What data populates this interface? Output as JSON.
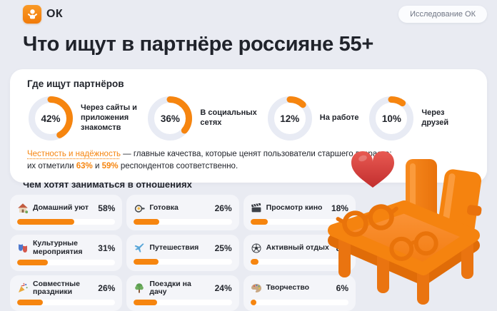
{
  "header": {
    "logo_text": "ОК",
    "badge": "Исследование ОК"
  },
  "title": "Что ищут в партнёре россияне 55+",
  "where": {
    "heading": "Где ищут партнёров",
    "donuts": [
      {
        "pct": 42,
        "label": "Через сайты и приложения знакомств"
      },
      {
        "pct": 36,
        "label": "В социальных сетях"
      },
      {
        "pct": 12,
        "label": "На работе"
      },
      {
        "pct": 10,
        "label": "Через друзей"
      }
    ],
    "note": {
      "highlight": "Честность и надёжность",
      "after_highlight": " — главные качества, которые ценят пользователи старшего возраста:",
      "line2_prefix": "их отметили ",
      "pct1": "63%",
      "between": " и ",
      "pct2": "59%",
      "suffix": " респондентов соответственно."
    }
  },
  "activities": {
    "heading": "Чем хотят заниматься в отношениях",
    "items": [
      {
        "icon": "house-icon",
        "label": "Домашний уют",
        "pct": 58
      },
      {
        "icon": "pan-icon",
        "label": "Готовка",
        "pct": 26
      },
      {
        "icon": "clapper-icon",
        "label": "Просмотр кино",
        "pct": 18
      },
      {
        "icon": "masks-icon",
        "label": "Культурные мероприятия",
        "pct": 31
      },
      {
        "icon": "plane-icon",
        "label": "Путешествия",
        "pct": 25
      },
      {
        "icon": "ball-icon",
        "label": "Активный отдых",
        "pct": 8
      },
      {
        "icon": "party-icon",
        "label": "Совместные праздники",
        "pct": 26
      },
      {
        "icon": "tree-icon",
        "label": "Поездки на дачу",
        "pct": 24
      },
      {
        "icon": "palette-icon",
        "label": "Творчество",
        "pct": 6
      }
    ]
  },
  "colors": {
    "accent": "#F6850F",
    "accent_dark": "#E9720C",
    "donut_track": "#E8EBF4",
    "page_bg": "#E9EBF2",
    "card_bg": "#FFFFFF",
    "item_bg": "#F4F5F9",
    "text": "#22252C",
    "muted": "#6F7584",
    "heart_red": "#D43B3B"
  },
  "chart_data": [
    {
      "type": "pie",
      "title": "Где ищут партнёров",
      "categories": [
        "Через сайты и приложения знакомств",
        "В социальных сетях",
        "На работе",
        "Через друзей"
      ],
      "values": [
        42,
        36,
        12,
        10
      ],
      "unit": "%",
      "style": "donut, orange arc on light track, value inside ring, arcs start at 12 o'clock clockwise"
    },
    {
      "type": "bar",
      "title": "Чем хотят заниматься в отношениях",
      "categories": [
        "Домашний уют",
        "Готовка",
        "Просмотр кино",
        "Культурные мероприятия",
        "Путешествия",
        "Активный отдых",
        "Совместные праздники",
        "Поездки на дачу",
        "Творчество"
      ],
      "values": [
        58,
        26,
        18,
        31,
        25,
        8,
        26,
        24,
        6
      ],
      "unit": "%",
      "xlabel": "",
      "ylabel": "",
      "xlim": [
        0,
        100
      ],
      "style": "horizontal progress bars, orange fill on white track, 3x3 card grid"
    },
    {
      "type": "table",
      "title": "Главные качества",
      "categories": [
        "Честность",
        "Надёжность"
      ],
      "values": [
        63,
        59
      ],
      "unit": "%"
    }
  ]
}
